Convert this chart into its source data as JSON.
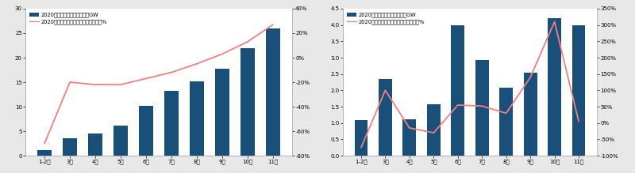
{
  "chart1": {
    "categories": [
      "1-2月",
      "3月",
      "4月",
      "5月",
      "6月",
      "7月",
      "8月",
      "9月",
      "10月",
      "11月"
    ],
    "bar_values": [
      1.1,
      3.5,
      4.5,
      6.2,
      10.2,
      13.2,
      15.1,
      17.8,
      22.0,
      26.0
    ],
    "line_values": [
      -0.7,
      -0.2,
      -0.22,
      -0.22,
      -0.17,
      -0.12,
      -0.05,
      0.03,
      0.13,
      0.27
    ],
    "bar_color": "#1A4F7A",
    "line_color": "#F08080",
    "legend1": "2020年光伏新增累计装机量，GW",
    "legend2": "2020年光伏新增累计装机量同比增速，%",
    "ylim_left": [
      0,
      30
    ],
    "ylim_right": [
      -0.8,
      0.4
    ],
    "yticks_left": [
      0,
      5,
      10,
      15,
      20,
      25,
      30
    ],
    "yticks_right_vals": [
      -0.8,
      -0.6,
      -0.4,
      -0.2,
      0.0,
      0.2,
      0.4
    ],
    "yticks_right_labels": [
      "-80%",
      "-60%",
      "-40%",
      "-20%",
      "0%",
      "20%",
      "40%"
    ]
  },
  "chart2": {
    "categories": [
      "1-2月",
      "3月",
      "4月",
      "5月",
      "6月",
      "7月",
      "8月",
      "9月",
      "10月",
      "11月"
    ],
    "bar_values": [
      1.08,
      2.35,
      1.12,
      1.58,
      4.0,
      2.93,
      2.07,
      2.55,
      4.2,
      4.0
    ],
    "line_values": [
      -0.75,
      1.0,
      -0.15,
      -0.3,
      0.55,
      0.52,
      0.3,
      1.4,
      3.1,
      0.05
    ],
    "bar_color": "#1A4F7A",
    "line_color": "#F08080",
    "legend1": "2020年光伏每月新增装机量，GW",
    "legend2": "2020年光伏每月新增装机量同比增速，%",
    "ylim_left": [
      0,
      4.5
    ],
    "ylim_right": [
      -1.0,
      3.5
    ],
    "yticks_left": [
      0,
      0.5,
      1.0,
      1.5,
      2.0,
      2.5,
      3.0,
      3.5,
      4.0,
      4.5
    ],
    "yticks_right_vals": [
      -1.0,
      -0.5,
      0.0,
      0.5,
      1.0,
      1.5,
      2.0,
      2.5,
      3.0,
      3.5
    ],
    "yticks_right_labels": [
      "-100%",
      "-50%",
      "0%",
      "50%",
      "100%",
      "150%",
      "200%",
      "250%",
      "300%",
      "350%"
    ]
  },
  "outer_bg": "#e8e8e8",
  "inner_bg": "#ffffff",
  "font_size": 5.0,
  "legend_fontsize": 4.8
}
